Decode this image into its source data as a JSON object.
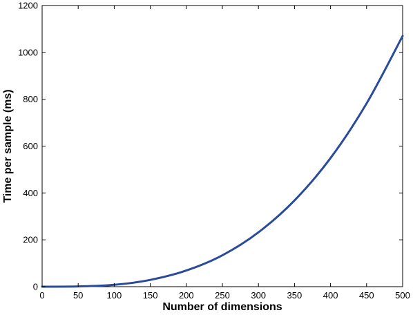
{
  "chart_data": {
    "type": "line",
    "title": "",
    "xlabel": "Number of dimensions",
    "ylabel": "Time per sample (ms)",
    "xlim": [
      0,
      500
    ],
    "ylim": [
      0,
      1200
    ],
    "x_ticks": [
      0,
      50,
      100,
      150,
      200,
      250,
      300,
      350,
      400,
      450,
      500
    ],
    "y_ticks": [
      0,
      200,
      400,
      600,
      800,
      1000,
      1200
    ],
    "x_tick_labels": [
      "0",
      "50",
      "100",
      "150",
      "200",
      "250",
      "300",
      "350",
      "400",
      "450",
      "500"
    ],
    "y_tick_labels": [
      "0",
      "200",
      "400",
      "600",
      "800",
      "1000",
      "1200"
    ],
    "grid": false,
    "series": [
      {
        "color": "#2a4a9a",
        "x": [
          0,
          50,
          100,
          150,
          200,
          250,
          300,
          350,
          400,
          450,
          500
        ],
        "y": [
          0,
          1,
          8,
          29,
          69,
          134,
          232,
          368,
          549,
          782,
          1070
        ]
      }
    ]
  }
}
